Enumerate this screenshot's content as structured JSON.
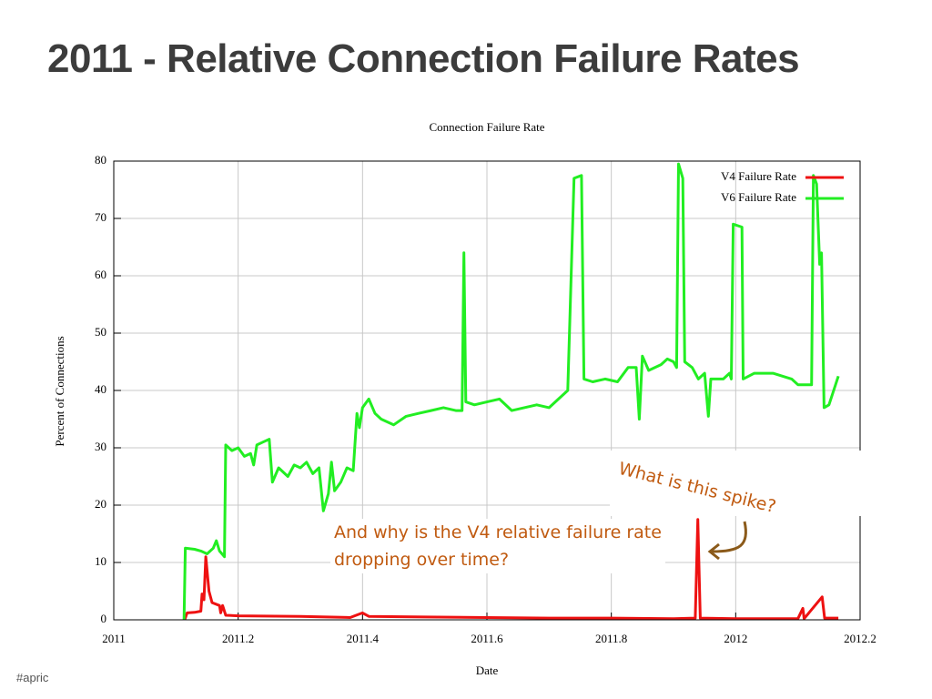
{
  "slide_title": "2011 - Relative Connection Failure Rates",
  "footer": "#apric",
  "chart_data": {
    "type": "line",
    "title": "Connection Failure Rate",
    "x_label": "Date",
    "y_label": "Percent of Connections",
    "xlim": [
      2011,
      2012.2
    ],
    "xticks": [
      2011,
      2011.2,
      2011.4,
      2011.6,
      2011.8,
      2012,
      2012.2
    ],
    "ylim": [
      0,
      80
    ],
    "yticks": [
      0,
      10,
      20,
      30,
      40,
      50,
      60,
      70,
      80
    ],
    "grid": true,
    "legend": "top-right",
    "annotations": [
      "What is this spike?",
      "And why is the V4 relative failure rate dropping over time?"
    ],
    "series": [
      {
        "name": "V4 Failure Rate",
        "color": "#ee1111",
        "x": [
          2011.114,
          2011.118,
          2011.13,
          2011.14,
          2011.142,
          2011.145,
          2011.148,
          2011.153,
          2011.158,
          2011.17,
          2011.172,
          2011.175,
          2011.18,
          2011.2,
          2011.3,
          2011.38,
          2011.4,
          2011.41,
          2011.5,
          2011.6,
          2011.7,
          2011.8,
          2011.9,
          2011.935,
          2011.939,
          2011.943,
          2012.0,
          2012.1,
          2012.108,
          2012.11,
          2012.139,
          2012.143,
          2012.165
        ],
        "values": [
          0,
          1.2,
          1.3,
          1.5,
          4.5,
          3.5,
          11,
          5,
          3,
          2.5,
          1.2,
          2.5,
          0.8,
          0.7,
          0.6,
          0.4,
          1.2,
          0.6,
          0.5,
          0.4,
          0.3,
          0.3,
          0.2,
          0.3,
          17.5,
          0.3,
          0.2,
          0.2,
          2,
          0.2,
          4,
          0.3,
          0.3
        ]
      },
      {
        "name": "V6 Failure Rate",
        "color": "#22ee22",
        "x": [
          2011.113,
          2011.115,
          2011.13,
          2011.14,
          2011.15,
          2011.16,
          2011.165,
          2011.17,
          2011.178,
          2011.18,
          2011.19,
          2011.2,
          2011.21,
          2011.22,
          2011.225,
          2011.23,
          2011.24,
          2011.25,
          2011.255,
          2011.265,
          2011.28,
          2011.29,
          2011.3,
          2011.31,
          2011.32,
          2011.33,
          2011.337,
          2011.345,
          2011.35,
          2011.355,
          2011.365,
          2011.375,
          2011.385,
          2011.391,
          2011.395,
          2011.4,
          2011.41,
          2011.42,
          2011.43,
          2011.45,
          2011.47,
          2011.49,
          2011.51,
          2011.53,
          2011.55,
          2011.56,
          2011.563,
          2011.566,
          2011.58,
          2011.6,
          2011.62,
          2011.64,
          2011.66,
          2011.68,
          2011.7,
          2011.73,
          2011.74,
          2011.752,
          2011.756,
          2011.77,
          2011.79,
          2011.81,
          2011.827,
          2011.84,
          2011.845,
          2011.85,
          2011.86,
          2011.88,
          2011.89,
          2011.9,
          2011.905,
          2011.908,
          2011.915,
          2011.918,
          2011.93,
          2011.94,
          2011.95,
          2011.956,
          2011.96,
          2011.98,
          2011.99,
          2011.993,
          2011.996,
          2012.01,
          2012.012,
          2012.03,
          2012.06,
          2012.09,
          2012.1,
          2012.122,
          2012.125,
          2012.13,
          2012.135,
          2012.138,
          2012.142,
          2012.15,
          2012.165
        ],
        "values": [
          0,
          12.5,
          12.3,
          12,
          11.5,
          12.5,
          13.8,
          12,
          11,
          30.5,
          29.5,
          30,
          28.5,
          29,
          27,
          30.5,
          31,
          31.5,
          24,
          26.5,
          25,
          27,
          26.5,
          27.5,
          25.5,
          26.5,
          19,
          22,
          27.5,
          22.5,
          24,
          26.5,
          26,
          36,
          33.5,
          37,
          38.5,
          36,
          35,
          34,
          35.5,
          36,
          36.5,
          37,
          36.5,
          36.5,
          64,
          38,
          37.5,
          38,
          38.5,
          36.5,
          37,
          37.5,
          37,
          40,
          77,
          77.5,
          42,
          41.5,
          42,
          41.5,
          44,
          44,
          35,
          46,
          43.5,
          44.5,
          45.5,
          45,
          44,
          79.5,
          77,
          45,
          44,
          42,
          43,
          35.5,
          42,
          42,
          43,
          42,
          69,
          68.5,
          42,
          43,
          43,
          42,
          41,
          41,
          77.5,
          76,
          62,
          64,
          37,
          37.5,
          42.5
        ]
      }
    ]
  }
}
